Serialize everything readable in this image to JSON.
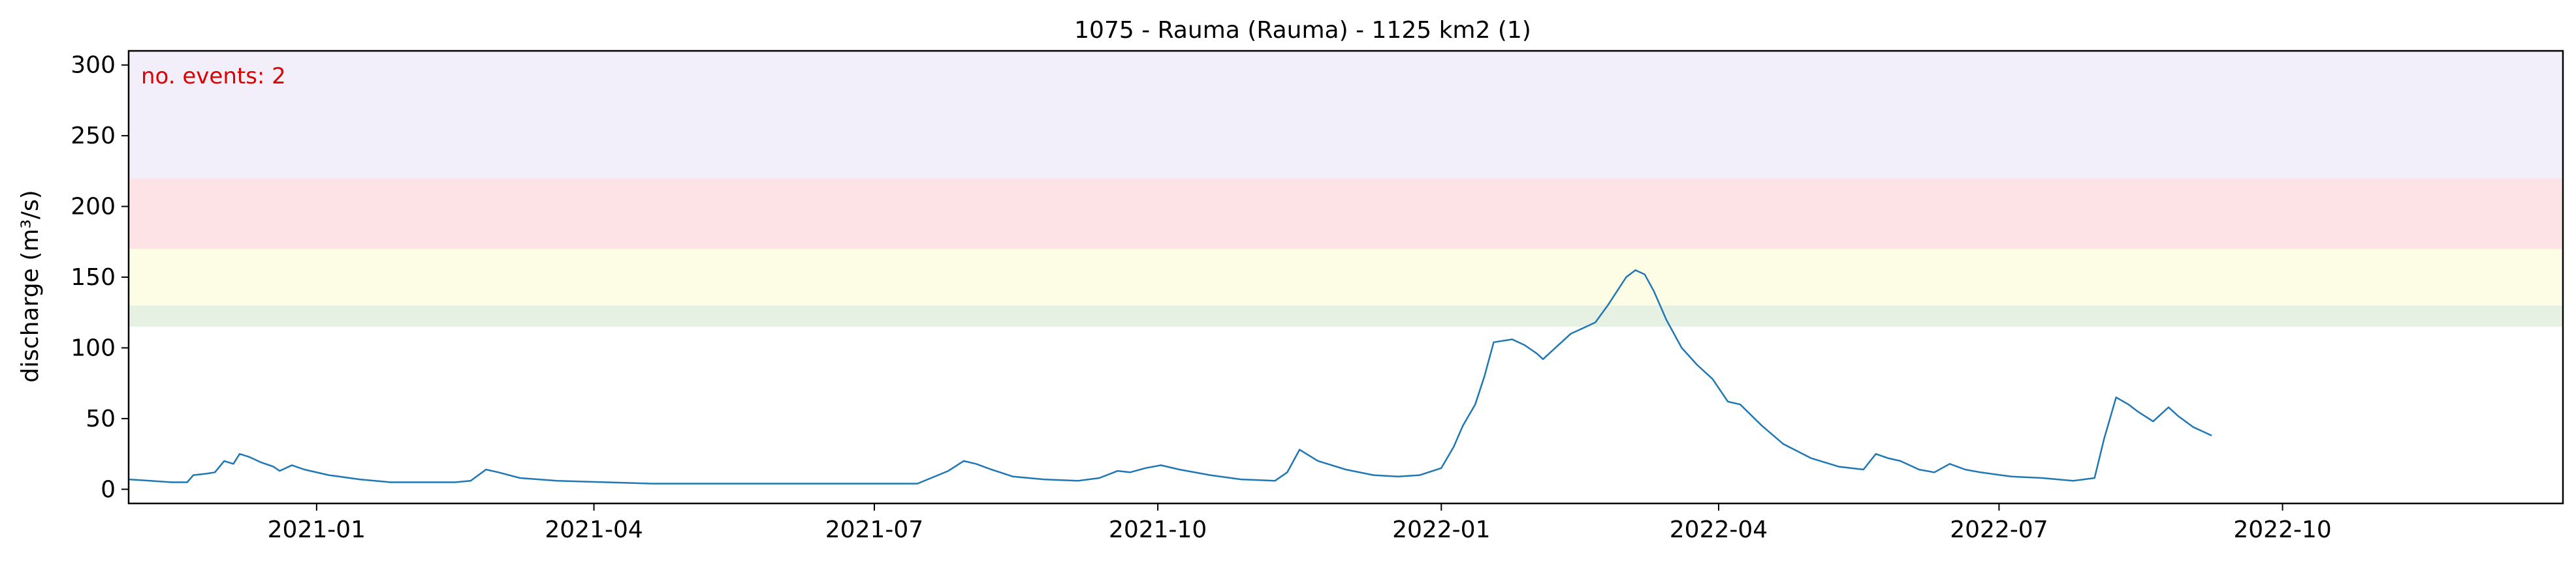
{
  "chart_data": {
    "type": "line",
    "title": "1075 - Rauma (Rauma) - 1125 km2 (1)",
    "xlabel": "",
    "ylabel": "discharge (m³/s)",
    "annotation": "no. events: 2",
    "xlim": [
      "2020-11-01",
      "2022-12-31"
    ],
    "ylim": [
      -10,
      310
    ],
    "x_ticks": [
      {
        "date": "2021-01-01",
        "label": "2021-01"
      },
      {
        "date": "2021-04-01",
        "label": "2021-04"
      },
      {
        "date": "2021-07-01",
        "label": "2021-07"
      },
      {
        "date": "2021-10-01",
        "label": "2021-10"
      },
      {
        "date": "2022-01-01",
        "label": "2022-01"
      },
      {
        "date": "2022-04-01",
        "label": "2022-04"
      },
      {
        "date": "2022-07-01",
        "label": "2022-07"
      },
      {
        "date": "2022-10-01",
        "label": "2022-10"
      }
    ],
    "y_ticks": [
      0,
      50,
      100,
      150,
      200,
      250,
      300
    ],
    "grid": false,
    "bands": [
      {
        "from": 115,
        "to": 130,
        "color": "#e6f1e3"
      },
      {
        "from": 130,
        "to": 170,
        "color": "#fdfde6"
      },
      {
        "from": 170,
        "to": 220,
        "color": "#fde3e6"
      },
      {
        "from": 220,
        "to": 310,
        "color": "#f2eefa"
      }
    ],
    "series": [
      {
        "color": "#1f77b4",
        "points": [
          [
            "2020-11-01",
            7
          ],
          [
            "2020-11-08",
            6
          ],
          [
            "2020-11-15",
            5
          ],
          [
            "2020-11-20",
            5
          ],
          [
            "2020-11-22",
            10
          ],
          [
            "2020-11-26",
            11
          ],
          [
            "2020-11-29",
            12
          ],
          [
            "2020-12-02",
            20
          ],
          [
            "2020-12-05",
            18
          ],
          [
            "2020-12-07",
            25
          ],
          [
            "2020-12-10",
            23
          ],
          [
            "2020-12-14",
            19
          ],
          [
            "2020-12-18",
            16
          ],
          [
            "2020-12-20",
            13
          ],
          [
            "2020-12-24",
            17
          ],
          [
            "2020-12-28",
            14
          ],
          [
            "2021-01-05",
            10
          ],
          [
            "2021-01-15",
            7
          ],
          [
            "2021-01-25",
            5
          ],
          [
            "2021-02-05",
            5
          ],
          [
            "2021-02-15",
            5
          ],
          [
            "2021-02-20",
            6
          ],
          [
            "2021-02-25",
            14
          ],
          [
            "2021-03-01",
            12
          ],
          [
            "2021-03-08",
            8
          ],
          [
            "2021-03-20",
            6
          ],
          [
            "2021-04-05",
            5
          ],
          [
            "2021-04-20",
            4
          ],
          [
            "2021-05-10",
            4
          ],
          [
            "2021-06-01",
            4
          ],
          [
            "2021-06-20",
            4
          ],
          [
            "2021-07-05",
            4
          ],
          [
            "2021-07-15",
            4
          ],
          [
            "2021-07-25",
            13
          ],
          [
            "2021-07-30",
            20
          ],
          [
            "2021-08-03",
            18
          ],
          [
            "2021-08-08",
            14
          ],
          [
            "2021-08-15",
            9
          ],
          [
            "2021-08-25",
            7
          ],
          [
            "2021-09-05",
            6
          ],
          [
            "2021-09-12",
            8
          ],
          [
            "2021-09-18",
            13
          ],
          [
            "2021-09-22",
            12
          ],
          [
            "2021-09-27",
            15
          ],
          [
            "2021-10-02",
            17
          ],
          [
            "2021-10-08",
            14
          ],
          [
            "2021-10-18",
            10
          ],
          [
            "2021-10-28",
            7
          ],
          [
            "2021-11-08",
            6
          ],
          [
            "2021-11-12",
            12
          ],
          [
            "2021-11-16",
            28
          ],
          [
            "2021-11-22",
            20
          ],
          [
            "2021-12-01",
            14
          ],
          [
            "2021-12-10",
            10
          ],
          [
            "2021-12-18",
            9
          ],
          [
            "2021-12-25",
            10
          ],
          [
            "2022-01-01",
            15
          ],
          [
            "2022-01-05",
            30
          ],
          [
            "2022-01-08",
            45
          ],
          [
            "2022-01-12",
            60
          ],
          [
            "2022-01-15",
            80
          ],
          [
            "2022-01-18",
            104
          ],
          [
            "2022-01-24",
            106
          ],
          [
            "2022-01-28",
            102
          ],
          [
            "2022-02-01",
            96
          ],
          [
            "2022-02-03",
            92
          ],
          [
            "2022-02-07",
            100
          ],
          [
            "2022-02-12",
            110
          ],
          [
            "2022-02-16",
            114
          ],
          [
            "2022-02-20",
            118
          ],
          [
            "2022-02-24",
            130
          ],
          [
            "2022-02-27",
            140
          ],
          [
            "2022-03-02",
            150
          ],
          [
            "2022-03-05",
            155
          ],
          [
            "2022-03-08",
            152
          ],
          [
            "2022-03-11",
            140
          ],
          [
            "2022-03-15",
            120
          ],
          [
            "2022-03-20",
            100
          ],
          [
            "2022-03-25",
            88
          ],
          [
            "2022-03-30",
            78
          ],
          [
            "2022-04-04",
            62
          ],
          [
            "2022-04-08",
            60
          ],
          [
            "2022-04-15",
            45
          ],
          [
            "2022-04-22",
            32
          ],
          [
            "2022-05-01",
            22
          ],
          [
            "2022-05-10",
            16
          ],
          [
            "2022-05-18",
            14
          ],
          [
            "2022-05-22",
            25
          ],
          [
            "2022-05-26",
            22
          ],
          [
            "2022-05-30",
            20
          ],
          [
            "2022-06-05",
            14
          ],
          [
            "2022-06-10",
            12
          ],
          [
            "2022-06-15",
            18
          ],
          [
            "2022-06-20",
            14
          ],
          [
            "2022-06-25",
            12
          ],
          [
            "2022-07-05",
            9
          ],
          [
            "2022-07-15",
            8
          ],
          [
            "2022-07-25",
            6
          ],
          [
            "2022-08-01",
            8
          ],
          [
            "2022-08-04",
            35
          ],
          [
            "2022-08-08",
            65
          ],
          [
            "2022-08-12",
            60
          ],
          [
            "2022-08-15",
            55
          ],
          [
            "2022-08-20",
            48
          ],
          [
            "2022-08-25",
            58
          ],
          [
            "2022-08-28",
            52
          ],
          [
            "2022-09-02",
            44
          ],
          [
            "2022-09-08",
            38
          ]
        ]
      }
    ]
  }
}
